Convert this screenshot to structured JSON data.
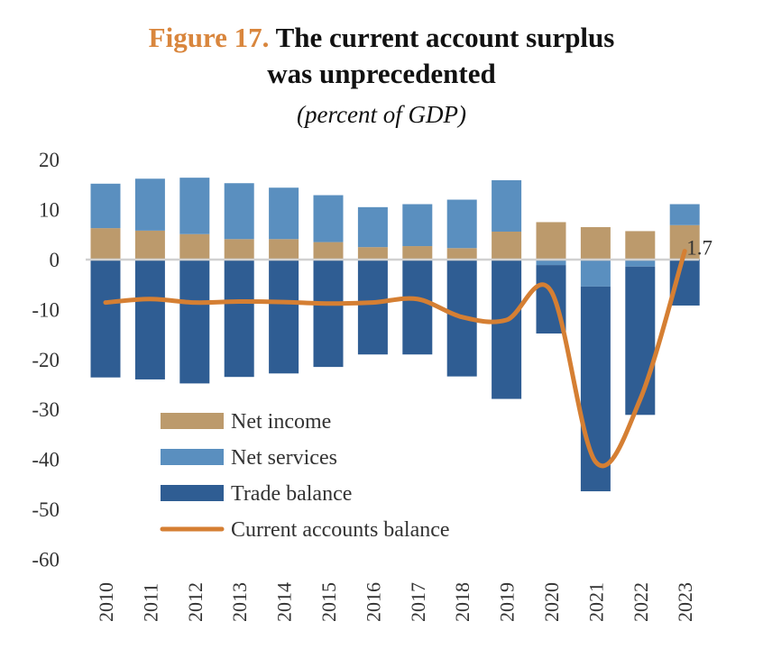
{
  "chart_data": {
    "type": "bar",
    "title_prefix": "Figure 17.",
    "title": "The current account surplus was unprecedented",
    "subtitle": "(percent of GDP)",
    "categories": [
      "2010",
      "2011",
      "2012",
      "2013",
      "2014",
      "2015",
      "2016",
      "2017",
      "2018",
      "2019",
      "2020",
      "2021",
      "2022",
      "2023"
    ],
    "stacked": true,
    "series": [
      {
        "name": "Net income",
        "kind": "bar",
        "color": "#BC9A6C",
        "values": [
          6.3,
          5.8,
          5.1,
          4.1,
          4.1,
          3.5,
          2.5,
          2.7,
          2.3,
          5.6,
          7.5,
          6.5,
          5.7,
          6.9
        ]
      },
      {
        "name": "Net services",
        "kind": "bar",
        "color": "#5A8FBF",
        "values": [
          8.9,
          10.4,
          11.3,
          11.2,
          10.3,
          9.4,
          8.0,
          8.4,
          9.7,
          10.3,
          -1.1,
          -5.4,
          -1.4,
          4.2
        ]
      },
      {
        "name": "Trade balance",
        "kind": "bar",
        "color": "#2F5D93",
        "values": [
          -23.6,
          -24.0,
          -24.8,
          -23.5,
          -22.8,
          -21.5,
          -19.0,
          -19.0,
          -23.4,
          -27.9,
          -13.7,
          -41.0,
          -29.7,
          -9.2
        ]
      },
      {
        "name": "Current accounts balance",
        "kind": "line",
        "color": "#D57F33",
        "values": [
          -8.6,
          -7.9,
          -8.6,
          -8.4,
          -8.5,
          -8.8,
          -8.6,
          -7.9,
          -11.5,
          -12.1,
          -6.3,
          -40.5,
          -28.0,
          1.7
        ]
      }
    ],
    "data_labels": [
      {
        "category": "2023",
        "text": "1.7"
      }
    ],
    "yticks": [
      "20",
      "10",
      "0",
      "-10",
      "-20",
      "-30",
      "-40",
      "-50",
      "-60"
    ],
    "ylim": [
      -60,
      20
    ],
    "grid": false,
    "legend_placement": "inside-bottom-left"
  }
}
